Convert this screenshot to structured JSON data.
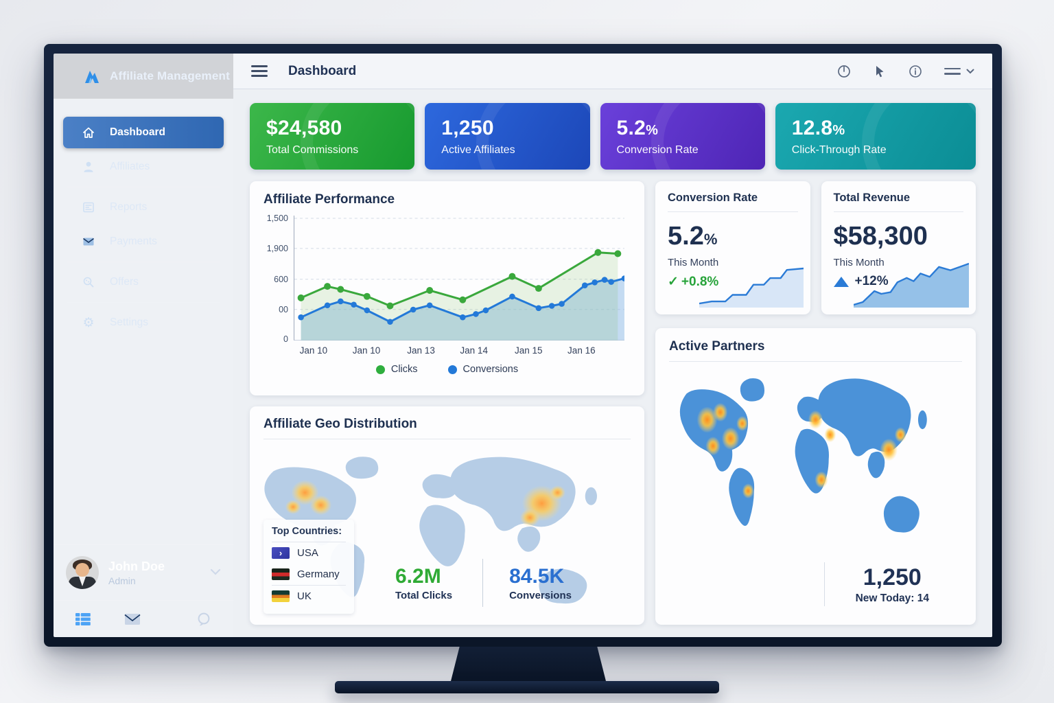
{
  "sidebar": {
    "logo_text": "Affiliate Management",
    "items": [
      {
        "label": "Dashboard",
        "icon": "home-icon",
        "active": true
      },
      {
        "label": "Affiliates",
        "icon": "person-icon",
        "active": false
      },
      {
        "label": "Reports",
        "icon": "report-icon",
        "active": false
      },
      {
        "label": "Payments",
        "icon": "payments-icon",
        "active": false
      },
      {
        "label": "Offers",
        "icon": "offers-icon",
        "active": false
      },
      {
        "label": "Settings",
        "icon": "settings-icon",
        "active": false
      }
    ],
    "user": {
      "name": "John Doe",
      "role": "Admin"
    }
  },
  "topbar": {
    "title": "Dashboard"
  },
  "kpis": [
    {
      "value": "$24,580",
      "unit": "",
      "label": "Total Commissions",
      "color_from": "#3cb74a",
      "color_to": "#179a2f"
    },
    {
      "value": "1,250",
      "unit": "",
      "label": "Active Affiliates",
      "color_from": "#2d68dd",
      "color_to": "#1c47b8"
    },
    {
      "value": "5.2",
      "unit": "%",
      "label": "Conversion Rate",
      "color_from": "#6a40da",
      "color_to": "#4e25b5"
    },
    {
      "value": "12.8",
      "unit": "%",
      "label": "Click-Through Rate",
      "color_from": "#1ba8b0",
      "color_to": "#0b8d95"
    }
  ],
  "chart_data": {
    "type": "line",
    "title": "Affiliate Performance",
    "y_labels": [
      "1,500",
      "1,900",
      "600",
      "00",
      "0"
    ],
    "x_labels": [
      "Jan 10",
      "Jan 10",
      "Jan 13",
      "Jan 14",
      "Jan 15",
      "Jan 16"
    ],
    "ymax": 1250,
    "legend": [
      {
        "label": "Clicks",
        "color": "#2fae3e"
      },
      {
        "label": "Conversions",
        "color": "#2379d8"
      }
    ],
    "series": [
      {
        "name": "Clicks",
        "color": "#3aa83c",
        "fill": "rgba(118,188,86,0.16)",
        "points": [
          [
            2,
            425
          ],
          [
            10,
            540
          ],
          [
            14,
            510
          ],
          [
            22,
            440
          ],
          [
            29,
            345
          ],
          [
            41,
            500
          ],
          [
            51,
            405
          ],
          [
            66,
            640
          ],
          [
            74,
            520
          ],
          [
            92,
            880
          ],
          [
            98,
            868
          ]
        ]
      },
      {
        "name": "Conversions",
        "color": "#2379d8",
        "fill": "rgba(140,185,230,0.50)",
        "points": [
          [
            2,
            230
          ],
          [
            10,
            350
          ],
          [
            14,
            390
          ],
          [
            18,
            357
          ],
          [
            22,
            300
          ],
          [
            29,
            185
          ],
          [
            36,
            307
          ],
          [
            41,
            350
          ],
          [
            51,
            230
          ],
          [
            55,
            263
          ],
          [
            58,
            300
          ],
          [
            66,
            438
          ],
          [
            74,
            322
          ],
          [
            78,
            345
          ],
          [
            81,
            365
          ],
          [
            88,
            550
          ],
          [
            91,
            580
          ],
          [
            94,
            606
          ],
          [
            96,
            585
          ],
          [
            100,
            620
          ]
        ]
      }
    ]
  },
  "conversion_card": {
    "title": "Conversion Rate",
    "value": "5.2",
    "unit": "%",
    "period": "This Month",
    "delta_icon": "check-icon",
    "delta": "+0.8%",
    "spark": [
      [
        0,
        8
      ],
      [
        12,
        12
      ],
      [
        25,
        12
      ],
      [
        32,
        25
      ],
      [
        45,
        25
      ],
      [
        52,
        45
      ],
      [
        62,
        45
      ],
      [
        68,
        58
      ],
      [
        78,
        58
      ],
      [
        84,
        74
      ],
      [
        100,
        77
      ]
    ]
  },
  "revenue_card": {
    "title": "Total Revenue",
    "value": "$58,300",
    "period": "This Month",
    "delta": "+12%",
    "spark": [
      [
        0,
        5
      ],
      [
        8,
        10
      ],
      [
        18,
        30
      ],
      [
        24,
        25
      ],
      [
        32,
        28
      ],
      [
        38,
        46
      ],
      [
        46,
        54
      ],
      [
        52,
        48
      ],
      [
        58,
        62
      ],
      [
        66,
        56
      ],
      [
        74,
        74
      ],
      [
        84,
        68
      ],
      [
        100,
        80
      ]
    ]
  },
  "partners_card": {
    "title": "Active Partners",
    "count": "1,250",
    "new_today": "New Today: 14"
  },
  "geo_card": {
    "title": "Affiliate Geo Distribution",
    "top_countries": {
      "title": "Top Countries:",
      "items": [
        {
          "name": "USA",
          "glyph": "›",
          "flag_css": "linear-gradient(135deg,#4a4fc0,#2e33a0)"
        },
        {
          "name": "Germany",
          "glyph": "",
          "flag_css": "linear-gradient(180deg,#17231a 0%,#17231a 34%,#cf2b2b 34%,#cf2b2b 67%,#1d2a20 67%)"
        },
        {
          "name": "UK",
          "glyph": "",
          "flag_css": "linear-gradient(180deg,#143c33 0%,#143c33 38%,#e07b1f 38%,#e07b1f 66%,#f2d23c 66%)"
        }
      ]
    },
    "stats": [
      {
        "value": "6.2M",
        "label": "Total Clicks",
        "color": "#2faa35"
      },
      {
        "value": "84.5K",
        "label": "Conversions",
        "color": "#2a6fd0"
      }
    ]
  }
}
